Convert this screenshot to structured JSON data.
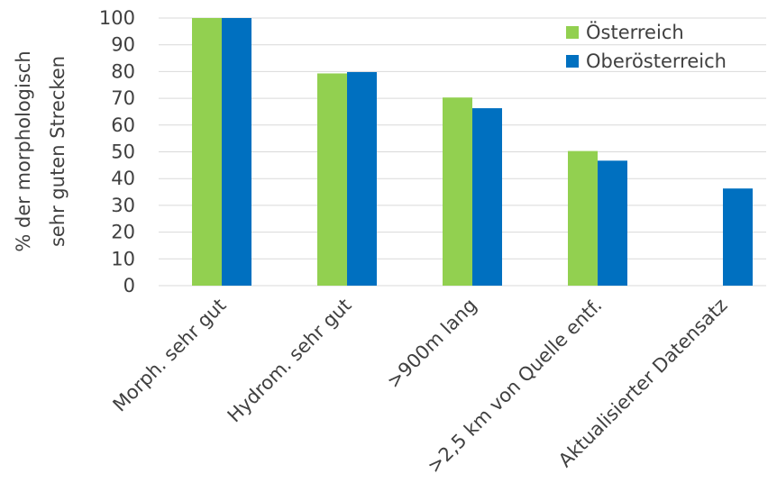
{
  "chart_data": {
    "type": "bar",
    "categories": [
      "Morph. sehr gut",
      "Hydrom. sehr gut",
      ">900m lang",
      ">2,5 km von Quelle entf.",
      "Aktualisierter Datensatz"
    ],
    "series": [
      {
        "name": "Österreich",
        "color": "#92d050",
        "values": [
          100,
          79.3,
          70.3,
          50.3,
          null
        ]
      },
      {
        "name": "Oberösterreich",
        "color": "#0070c0",
        "values": [
          100,
          79.8,
          66.3,
          46.7,
          36.3
        ]
      }
    ],
    "ylabel_line1": "%  der morphologisch",
    "ylabel_line2": "sehr guten Strecken",
    "ylim": [
      0,
      100
    ],
    "yticks": [
      0,
      10,
      20,
      30,
      40,
      50,
      60,
      70,
      80,
      90,
      100
    ],
    "grid": true,
    "legend_position": "top-right"
  }
}
